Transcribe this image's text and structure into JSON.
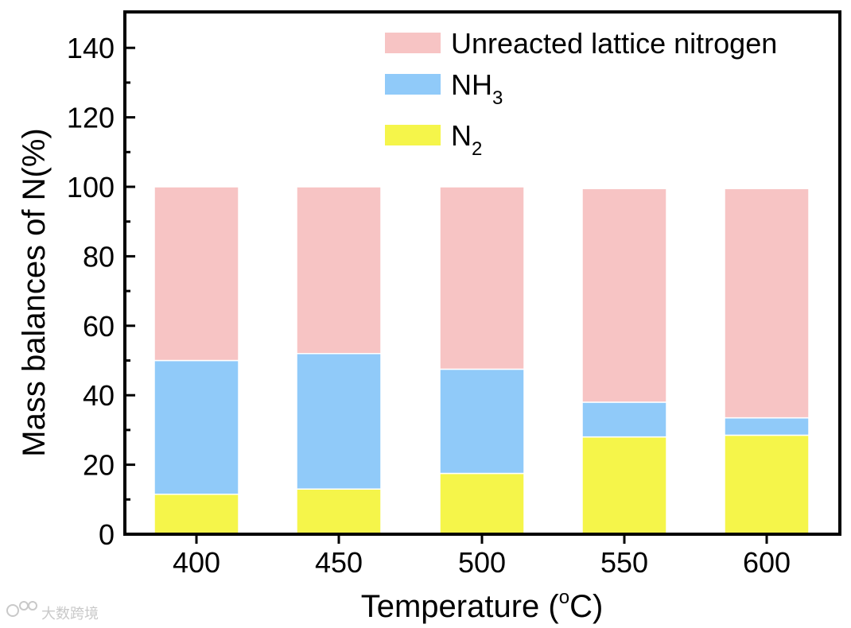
{
  "chart_data": {
    "type": "bar",
    "stacked": true,
    "categories": [
      "400",
      "450",
      "500",
      "550",
      "600"
    ],
    "series": [
      {
        "name": "N2",
        "label_main": "N",
        "label_sub": "2",
        "color": "#f5f54a",
        "values": [
          11.5,
          13,
          17.5,
          28,
          28.5
        ]
      },
      {
        "name": "NH3",
        "label_main": "NH",
        "label_sub": "3",
        "color": "#90caf9",
        "values": [
          38.5,
          39,
          30,
          10,
          5
        ]
      },
      {
        "name": "Unreacted lattice nitrogen",
        "label_main": "Unreacted lattice nitrogen",
        "label_sub": "",
        "color": "#f7c4c4",
        "values": [
          50,
          48,
          52.5,
          61.5,
          66
        ]
      }
    ],
    "legend_order": [
      "Unreacted lattice nitrogen",
      "NH3",
      "N2"
    ],
    "legend_position": "top-right",
    "xlabel": "Temperature (",
    "xlabel_sup": "o",
    "xlabel_end": "C)",
    "ylabel": "Mass balances of N(%)",
    "ylim": [
      0,
      150
    ],
    "yticks": [
      0,
      20,
      40,
      60,
      80,
      100,
      120,
      140
    ],
    "grid": false
  },
  "watermark": {
    "text": "大数跨境"
  }
}
